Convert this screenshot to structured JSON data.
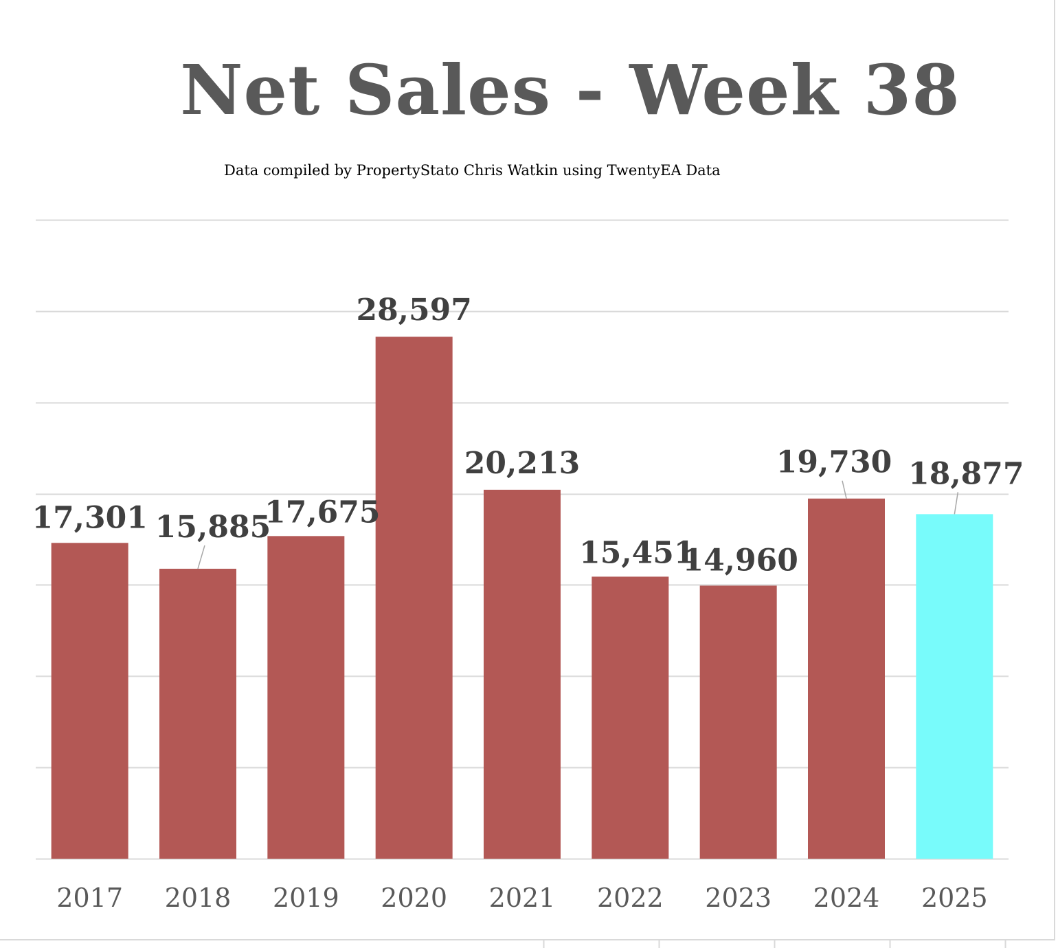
{
  "chart_data": {
    "type": "bar",
    "title": "Net Sales - Week 38",
    "subtitle": "Data compiled by PropertyStato Chris Watkin using TwentyEA Data",
    "xlabel": "",
    "ylabel": "",
    "categories": [
      "2017",
      "2018",
      "2019",
      "2020",
      "2021",
      "2022",
      "2023",
      "2024",
      "2025"
    ],
    "values": [
      17301,
      15885,
      17675,
      28597,
      20213,
      15451,
      14960,
      19730,
      18877
    ],
    "data_labels": [
      "17,301",
      "15,885",
      "17,675",
      "28,597",
      "20,213",
      "15,451",
      "14,960",
      "19,730",
      "18,877"
    ],
    "ylim": [
      0,
      35000
    ],
    "y_gridlines": [
      0,
      5000,
      10000,
      15000,
      20000,
      25000,
      30000,
      35000
    ],
    "y_tick_labels_visible": false,
    "grid": true,
    "legend": "none",
    "colors": {
      "bar_default": "#b35855",
      "bar_highlight": "#78fbfb",
      "highlight_category": "2025",
      "gridline": "#d9d9d9",
      "data_label": "#404040",
      "tick_label": "#595959",
      "title": "#595959",
      "leader_line": "#a6a6a6"
    }
  }
}
